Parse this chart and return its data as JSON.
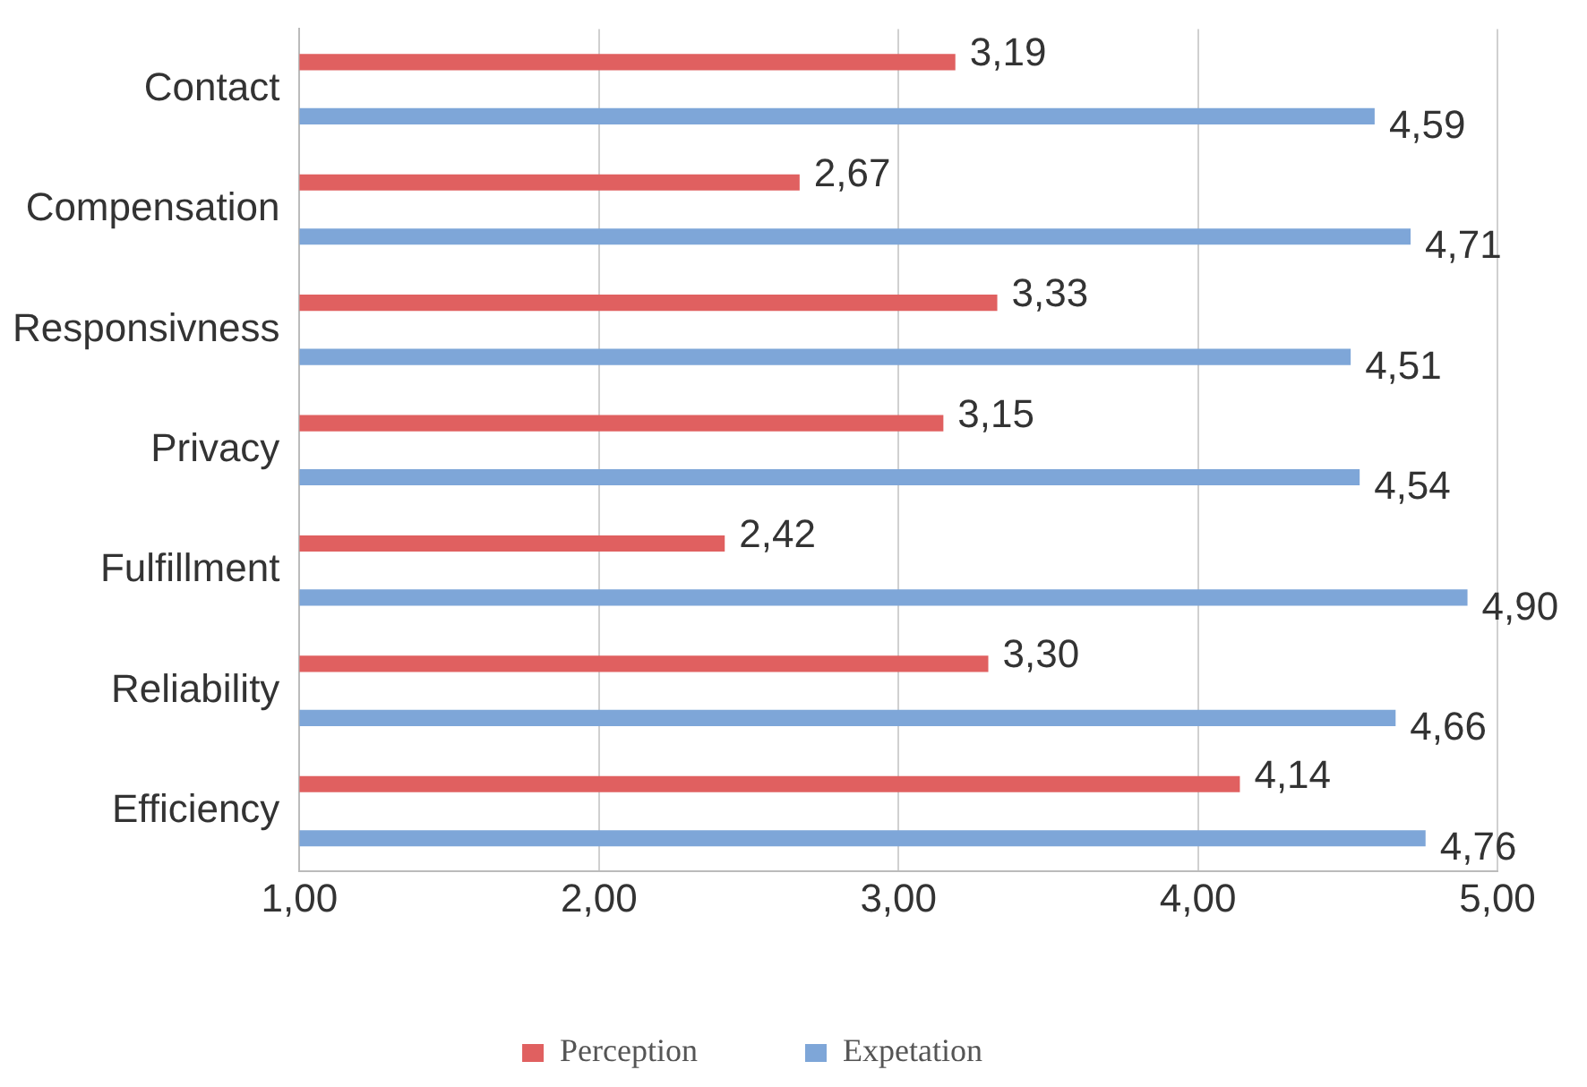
{
  "chart_data": {
    "type": "bar",
    "orientation": "horizontal",
    "categories": [
      "Contact",
      "Compensation",
      "Responsivness",
      "Privacy",
      "Fulfillment",
      "Reliability",
      "Efficiency"
    ],
    "series": [
      {
        "name": "Perception",
        "color": "#e06060",
        "values": [
          3.19,
          2.67,
          3.33,
          3.15,
          2.42,
          3.3,
          4.14
        ],
        "value_labels": [
          "3,19",
          "2,67",
          "3,33",
          "3,15",
          "2,42",
          "3,30",
          "4,14"
        ]
      },
      {
        "name": "Expetation",
        "color": "#7ea6d8",
        "values": [
          4.59,
          4.71,
          4.51,
          4.54,
          4.9,
          4.66,
          4.76
        ],
        "value_labels": [
          "4,59",
          "4,71",
          "4,51",
          "4,54",
          "4,90",
          "4,66",
          "4,76"
        ]
      }
    ],
    "xlim": [
      1,
      5
    ],
    "xticks": [
      {
        "value": 1,
        "label": "1,00"
      },
      {
        "value": 2,
        "label": "2,00"
      },
      {
        "value": 3,
        "label": "3,00"
      },
      {
        "value": 4,
        "label": "4,00"
      },
      {
        "value": 5,
        "label": "5,00"
      }
    ],
    "grid": "x",
    "legend": "bottom"
  }
}
